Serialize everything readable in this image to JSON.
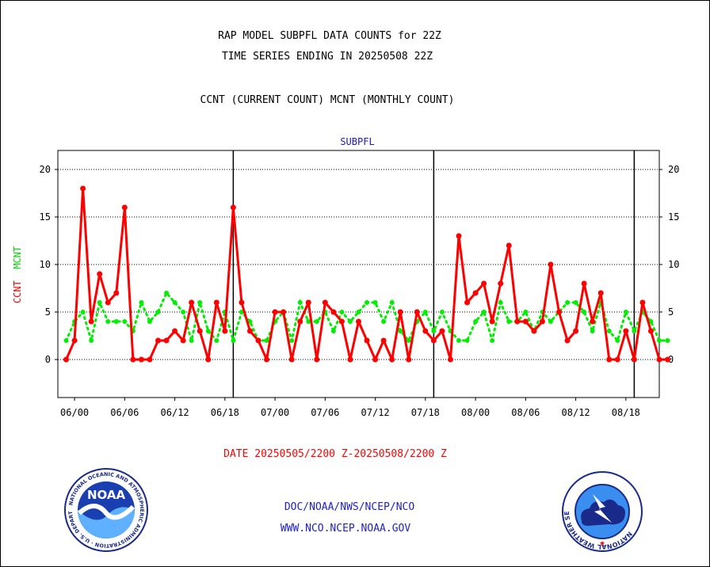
{
  "header": {
    "title_line1": "RAP MODEL SUBPFL DATA COUNTS for 22Z",
    "title_line2": "TIME SERIES ENDING IN 20250508 22Z",
    "title_line3": "CCNT (CURRENT COUNT) MCNT (MONTHLY COUNT)"
  },
  "footer": {
    "date_range": "DATE 20250505/2200 Z-20250508/2200 Z",
    "link_doc": "DOC/NOAA/NWS/NCEP/NCO",
    "link_web": "WWW.NCO.NCEP.NOAA.GOV"
  },
  "logos": {
    "noaa_text": "NOAA",
    "noaa_ring_text": "NATIONAL OCEANIC AND ATMOSPHERIC ADMINISTRATION · U.S. DEPARTMENT OF COMMERCE",
    "nws_ring_text": "NATIONAL WEATHER SERVICE"
  },
  "chart_data": {
    "type": "line",
    "title": "SUBPFL",
    "ylabel_ccnt": "CCNT",
    "ylabel_mcnt": "MCNT",
    "ylim": [
      -4,
      22
    ],
    "yticks": [
      0,
      5,
      10,
      15,
      20
    ],
    "xlim": [
      -1,
      71
    ],
    "xtick_labels": [
      "06/00",
      "06/06",
      "06/12",
      "06/18",
      "07/00",
      "07/06",
      "07/12",
      "07/18",
      "08/00",
      "08/06",
      "08/12",
      "08/18"
    ],
    "xtick_positions": [
      1,
      7,
      13,
      19,
      25,
      31,
      37,
      43,
      49,
      55,
      61,
      67
    ],
    "day_separators": [
      20,
      44,
      68
    ],
    "grid": true,
    "colors": {
      "ccnt": "#ff0000",
      "mcnt": "#00ee00",
      "grid": "#000000",
      "title": "#1a1ab0"
    },
    "series": [
      {
        "name": "CCNT",
        "style": "solid",
        "values": [
          0,
          2,
          18,
          4,
          9,
          6,
          7,
          16,
          0,
          0,
          0,
          2,
          2,
          3,
          2,
          6,
          3,
          0,
          6,
          3,
          16,
          6,
          3,
          2,
          0,
          5,
          5,
          0,
          4,
          6,
          0,
          6,
          5,
          4,
          0,
          4,
          2,
          0,
          2,
          0,
          5,
          0,
          5,
          3,
          2,
          3,
          0,
          13,
          6,
          7,
          8,
          4,
          8,
          12,
          4,
          4,
          3,
          4,
          10,
          5,
          2,
          3,
          8,
          4,
          7,
          0,
          0,
          3,
          0,
          6,
          3,
          0,
          0
        ]
      },
      {
        "name": "MCNT",
        "style": "dotted",
        "values": [
          2,
          4,
          5,
          2,
          6,
          4,
          4,
          4,
          3,
          6,
          4,
          5,
          7,
          6,
          5,
          2,
          6,
          3,
          2,
          5,
          2,
          5,
          4,
          2,
          2,
          4,
          5,
          2,
          6,
          4,
          4,
          5,
          3,
          5,
          4,
          5,
          6,
          6,
          4,
          6,
          3,
          2,
          4,
          5,
          3,
          5,
          3,
          2,
          2,
          4,
          5,
          2,
          6,
          4,
          4,
          5,
          3,
          5,
          4,
          5,
          6,
          6,
          5,
          3,
          6,
          3,
          2,
          5,
          3,
          5,
          4,
          2,
          2
        ]
      }
    ]
  }
}
